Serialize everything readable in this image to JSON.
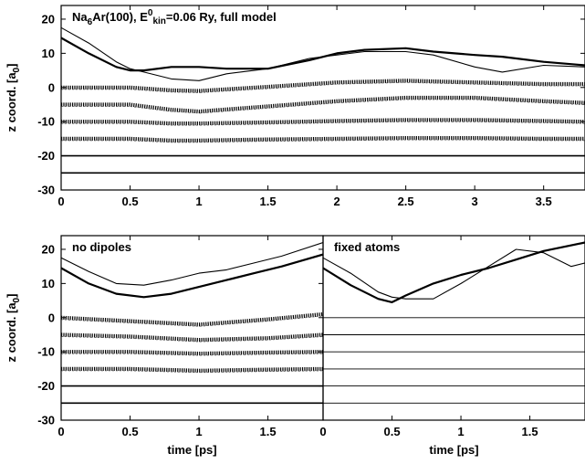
{
  "chart_data": [
    {
      "type": "line",
      "panel": "top",
      "title": "Na6Ar(100), E0kin=0.06 Ry, full model",
      "title_parts": {
        "base": "Na",
        "sub1": "6",
        "mid": "Ar(100), E",
        "sup": "0",
        "sub2": "kin",
        "tail": "=0.06 Ry, full model"
      },
      "xlabel": "",
      "ylabel": "z coord. [a0]",
      "ylabel_parts": {
        "base": "z coord. [a",
        "sub": "0",
        "tail": "]"
      },
      "xlim": [
        0,
        3.8
      ],
      "ylim": [
        -30,
        24
      ],
      "xticks": [
        "0",
        "0.5",
        "1",
        "1.5",
        "2",
        "2.5",
        "3",
        "3.5"
      ],
      "yticks": [
        "-30",
        "-20",
        "-10",
        "0",
        "10",
        "20"
      ],
      "series": [
        {
          "style": "thin",
          "x": [
            0,
            0.2,
            0.4,
            0.5,
            0.6,
            0.8,
            1.0,
            1.2,
            1.5,
            1.8,
            2.0,
            2.2,
            2.5,
            2.7,
            3.0,
            3.2,
            3.5,
            3.8
          ],
          "y": [
            17.5,
            13,
            7.5,
            5.5,
            4.5,
            2.5,
            2.0,
            4.0,
            5.5,
            8.5,
            9.5,
            10.5,
            10.5,
            9.5,
            6.0,
            4.5,
            6.5,
            6.0
          ]
        },
        {
          "style": "thick",
          "x": [
            0,
            0.2,
            0.4,
            0.5,
            0.6,
            0.8,
            1.0,
            1.2,
            1.5,
            1.8,
            2.0,
            2.2,
            2.5,
            2.7,
            3.0,
            3.2,
            3.5,
            3.8
          ],
          "y": [
            14.5,
            10,
            6,
            5,
            5,
            6,
            6,
            5.5,
            5.5,
            8.0,
            10,
            11,
            11.5,
            10.5,
            9.5,
            9,
            7.5,
            6.5
          ]
        },
        {
          "style": "band",
          "x": [
            0,
            0.5,
            0.8,
            1.0,
            1.5,
            2.0,
            2.5,
            3.0,
            3.5,
            3.8
          ],
          "y": [
            0,
            0,
            -0.8,
            -1.0,
            0.2,
            1.5,
            2.0,
            1.5,
            1.0,
            1.0
          ]
        },
        {
          "style": "band",
          "x": [
            0,
            0.5,
            0.8,
            1.0,
            1.5,
            2.0,
            2.5,
            3.0,
            3.5,
            3.8
          ],
          "y": [
            -5,
            -5,
            -6.5,
            -7.0,
            -5.5,
            -4.0,
            -3.0,
            -3.0,
            -4.0,
            -4.5
          ]
        },
        {
          "style": "band",
          "x": [
            0,
            0.5,
            0.8,
            1.0,
            1.5,
            2.0,
            2.5,
            3.0,
            3.5,
            3.8
          ],
          "y": [
            -10,
            -10,
            -10.5,
            -10.5,
            -10.2,
            -9.8,
            -9.5,
            -9.5,
            -9.8,
            -10
          ]
        },
        {
          "style": "band",
          "x": [
            0,
            0.5,
            0.8,
            1.0,
            1.5,
            2.0,
            2.5,
            3.0,
            3.5,
            3.8
          ],
          "y": [
            -15,
            -15,
            -15.5,
            -15.5,
            -15.2,
            -15.0,
            -14.8,
            -14.8,
            -15.0,
            -15
          ]
        },
        {
          "style": "flat",
          "x": [
            0,
            3.8
          ],
          "y": [
            -20,
            -20
          ]
        },
        {
          "style": "flat",
          "x": [
            0,
            3.8
          ],
          "y": [
            -25,
            -25
          ]
        }
      ]
    },
    {
      "type": "line",
      "panel": "bottom-left",
      "title": "no dipoles",
      "xlabel": "time [ps]",
      "ylabel": "z coord. [a0]",
      "ylabel_parts": {
        "base": "z coord. [a",
        "sub": "0",
        "tail": "]"
      },
      "xlim": [
        0,
        1.9
      ],
      "ylim": [
        -30,
        24
      ],
      "xticks": [
        "0",
        "0.5",
        "1",
        "1.5"
      ],
      "yticks": [
        "-30",
        "-20",
        "-10",
        "0",
        "10",
        "20"
      ],
      "series": [
        {
          "style": "thin",
          "x": [
            0,
            0.2,
            0.4,
            0.6,
            0.8,
            1.0,
            1.2,
            1.4,
            1.6,
            1.9
          ],
          "y": [
            17.5,
            13.5,
            10,
            9.5,
            11,
            13,
            14,
            16,
            18,
            22
          ]
        },
        {
          "style": "thick",
          "x": [
            0,
            0.2,
            0.4,
            0.6,
            0.8,
            1.0,
            1.2,
            1.4,
            1.6,
            1.9
          ],
          "y": [
            14.5,
            10,
            7,
            6,
            7,
            9,
            11,
            13,
            15,
            18.5
          ]
        },
        {
          "style": "band",
          "x": [
            0,
            0.5,
            1.0,
            1.5,
            1.9
          ],
          "y": [
            0,
            -1.0,
            -2.0,
            -0.5,
            1.0
          ]
        },
        {
          "style": "band",
          "x": [
            0,
            0.5,
            1.0,
            1.5,
            1.9
          ],
          "y": [
            -5,
            -5.5,
            -6.5,
            -6.0,
            -5.0
          ]
        },
        {
          "style": "band",
          "x": [
            0,
            0.5,
            1.0,
            1.5,
            1.9
          ],
          "y": [
            -10,
            -10,
            -10.5,
            -10.2,
            -10
          ]
        },
        {
          "style": "band",
          "x": [
            0,
            0.5,
            1.0,
            1.5,
            1.9
          ],
          "y": [
            -15,
            -15,
            -15.5,
            -15.2,
            -15
          ]
        },
        {
          "style": "flat",
          "x": [
            0,
            1.9
          ],
          "y": [
            -20,
            -20
          ]
        },
        {
          "style": "flat",
          "x": [
            0,
            1.9
          ],
          "y": [
            -25,
            -25
          ]
        }
      ]
    },
    {
      "type": "line",
      "panel": "bottom-right",
      "title": "fixed atoms",
      "xlabel": "time [ps]",
      "ylabel": "",
      "xlim": [
        0,
        1.9
      ],
      "ylim": [
        -30,
        24
      ],
      "xticks": [
        "0",
        "0.5",
        "1",
        "1.5"
      ],
      "yticks": [],
      "series": [
        {
          "style": "thin",
          "x": [
            0,
            0.2,
            0.4,
            0.5,
            0.6,
            0.8,
            1.0,
            1.2,
            1.4,
            1.6,
            1.8,
            1.9
          ],
          "y": [
            17.5,
            13,
            7.5,
            6,
            5.5,
            5.5,
            10,
            15,
            20,
            19,
            15,
            16
          ]
        },
        {
          "style": "thick",
          "x": [
            0,
            0.2,
            0.4,
            0.5,
            0.6,
            0.8,
            1.0,
            1.2,
            1.4,
            1.6,
            1.9
          ],
          "y": [
            14.5,
            9.5,
            5.5,
            4.5,
            6.5,
            10,
            12.5,
            14.5,
            17,
            19.5,
            22
          ]
        },
        {
          "style": "flat",
          "x": [
            0,
            1.9
          ],
          "y": [
            0,
            0
          ]
        },
        {
          "style": "flat",
          "x": [
            0,
            1.9
          ],
          "y": [
            -5,
            -5
          ]
        },
        {
          "style": "flat",
          "x": [
            0,
            1.9
          ],
          "y": [
            -10,
            -10
          ]
        },
        {
          "style": "flat",
          "x": [
            0,
            1.9
          ],
          "y": [
            -15,
            -15
          ]
        },
        {
          "style": "flat",
          "x": [
            0,
            1.9
          ],
          "y": [
            -20,
            -20
          ]
        },
        {
          "style": "flat",
          "x": [
            0,
            1.9
          ],
          "y": [
            -25,
            -25
          ]
        }
      ]
    }
  ]
}
